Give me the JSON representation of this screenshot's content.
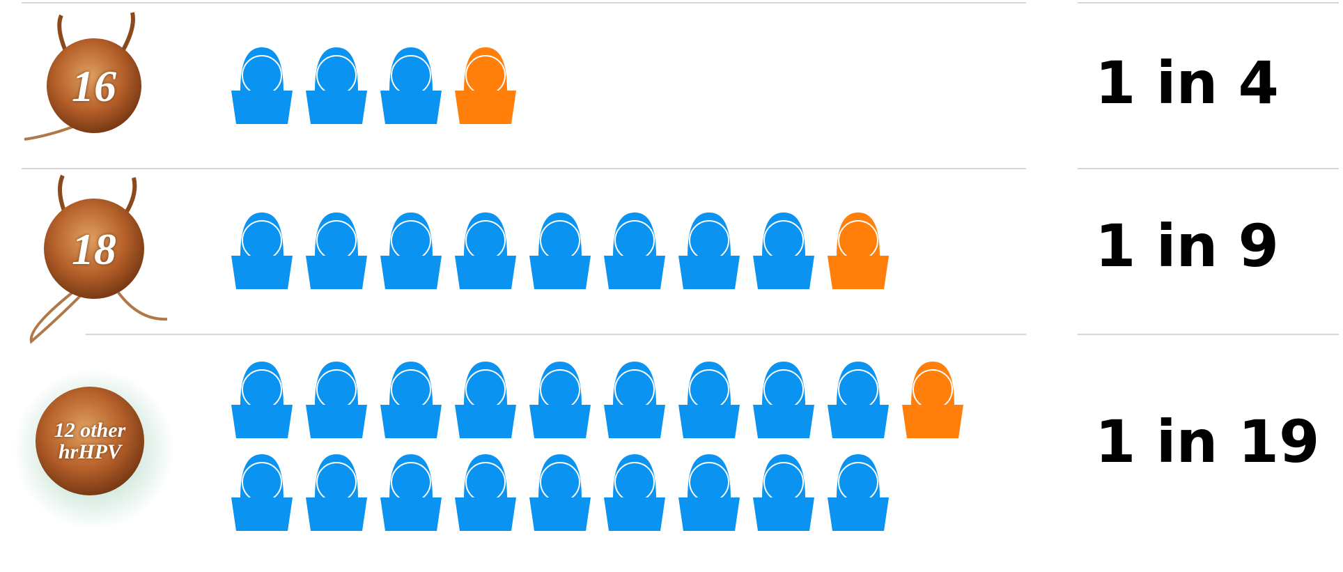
{
  "chart_data": {
    "type": "pictograph",
    "colors": {
      "base": "#0a93f0",
      "highlight": "#ff7f0a"
    },
    "per_line": 10,
    "rows": [
      {
        "label": "16",
        "ratio": "1 in 4",
        "total": 4,
        "highlighted": 1
      },
      {
        "label": "18",
        "ratio": "1 in 9",
        "total": 9,
        "highlighted": 1
      },
      {
        "label": "12 other hrHPV",
        "ratio": "1 in 19",
        "total": 19,
        "highlighted": 1
      }
    ]
  }
}
